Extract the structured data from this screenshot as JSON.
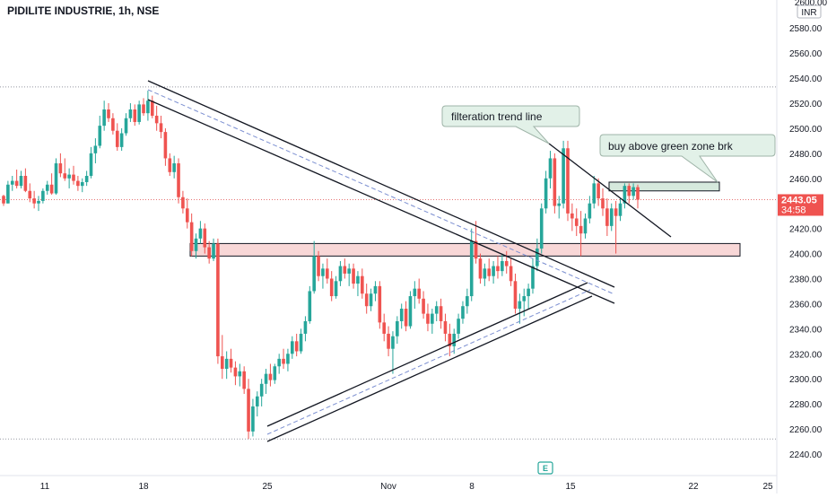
{
  "header": {
    "title": "PIDILITE INDUSTRIE, 1h, NSE"
  },
  "price_axis": {
    "currency": "INR",
    "top_partial_label": "2600.00",
    "last_price": "2443.05",
    "countdown": "34:58"
  },
  "annotations": {
    "callout_trend": "filteration trend line",
    "callout_buy": "buy above green zone brk"
  },
  "events": {
    "earnings_marker": "E"
  },
  "colors": {
    "up": "#26a69a",
    "down": "#ef5350",
    "price_tag": "#ef5350",
    "resistance_zone_fill": "#f8d7d7",
    "breakout_zone_fill": "#d6e9dd",
    "callout_fill": "#e2f1e8",
    "callout_border": "#9fb4a8",
    "channel_mid": "#7b8fd1",
    "dotted_level": "#e57373",
    "grid_text": "#131722"
  },
  "chart_data": {
    "type": "candlestick",
    "title": "PIDILITE INDUSTRIE, 1h, NSE",
    "x_tick_labels": [
      "11",
      "18",
      "25",
      "Nov",
      "8",
      "15",
      "22",
      "25"
    ],
    "y_tick_labels": [
      "2240.00",
      "2260.00",
      "2280.00",
      "2300.00",
      "2320.00",
      "2340.00",
      "2360.00",
      "2380.00",
      "2400.00",
      "2420.00",
      "2440.00",
      "2460.00",
      "2480.00",
      "2500.00",
      "2520.00",
      "2540.00",
      "2560.00",
      "2580.00"
    ],
    "ylim": [
      2232,
      2605
    ],
    "last_price": 2443.05,
    "dotted_levels": [
      2533,
      2443,
      2252
    ],
    "resistance_zone": [
      2398,
      2408
    ],
    "breakout_zone": [
      2450,
      2457
    ],
    "trend_lines": [
      {
        "id": "descending-upper",
        "points": [
          [
            18,
            2535
          ],
          [
            24.5,
            2368
          ]
        ]
      },
      {
        "id": "descending-lower",
        "points": [
          [
            18,
            2523
          ],
          [
            24.5,
            2357
          ]
        ]
      },
      {
        "id": "descending-mid",
        "points": [
          [
            18,
            2529
          ],
          [
            24.5,
            2363
          ]
        ],
        "dashed": true
      },
      {
        "id": "ascending-lower",
        "points": [
          [
            25.1,
            2253
          ],
          [
            24.3,
            2364
          ]
        ]
      },
      {
        "id": "ascending-upper",
        "points": [
          [
            25.1,
            2264
          ],
          [
            24.2,
            2377
          ]
        ]
      },
      {
        "id": "ascending-mid",
        "points": [
          [
            25.1,
            2258
          ],
          [
            24.3,
            2370
          ]
        ],
        "dashed": true
      },
      {
        "id": "filteration-trend-line",
        "points": [
          [
            12.2,
            2486
          ],
          [
            18.6,
            2413
          ]
        ]
      }
    ],
    "candles": [
      [
        2446,
        2447,
        2438,
        2440
      ],
      [
        2440,
        2458,
        2440,
        2455
      ],
      [
        2455,
        2462,
        2450,
        2458
      ],
      [
        2458,
        2467,
        2452,
        2454
      ],
      [
        2454,
        2466,
        2452,
        2462
      ],
      [
        2462,
        2468,
        2449,
        2450
      ],
      [
        2450,
        2456,
        2441,
        2444
      ],
      [
        2444,
        2450,
        2436,
        2440
      ],
      [
        2440,
        2446,
        2434,
        2442
      ],
      [
        2442,
        2452,
        2440,
        2450
      ],
      [
        2450,
        2458,
        2447,
        2455
      ],
      [
        2455,
        2464,
        2447,
        2448
      ],
      [
        2448,
        2476,
        2447,
        2472
      ],
      [
        2472,
        2480,
        2461,
        2464
      ],
      [
        2464,
        2476,
        2458,
        2460
      ],
      [
        2460,
        2468,
        2452,
        2463
      ],
      [
        2463,
        2470,
        2455,
        2458
      ],
      [
        2458,
        2462,
        2450,
        2454
      ],
      [
        2454,
        2460,
        2449,
        2457
      ],
      [
        2457,
        2466,
        2454,
        2462
      ],
      [
        2462,
        2485,
        2460,
        2480
      ],
      [
        2480,
        2492,
        2472,
        2486
      ],
      [
        2486,
        2510,
        2484,
        2502
      ],
      [
        2502,
        2522,
        2498,
        2515
      ],
      [
        2515,
        2520,
        2505,
        2508
      ],
      [
        2508,
        2512,
        2495,
        2498
      ],
      [
        2498,
        2504,
        2482,
        2485
      ],
      [
        2485,
        2500,
        2482,
        2496
      ],
      [
        2496,
        2512,
        2494,
        2508
      ],
      [
        2508,
        2520,
        2505,
        2515
      ],
      [
        2515,
        2519,
        2502,
        2505
      ],
      [
        2505,
        2522,
        2503,
        2519
      ],
      [
        2519,
        2524,
        2510,
        2512
      ],
      [
        2512,
        2530,
        2506,
        2522
      ],
      [
        2522,
        2526,
        2508,
        2510
      ],
      [
        2510,
        2518,
        2498,
        2504
      ],
      [
        2504,
        2510,
        2492,
        2497
      ],
      [
        2497,
        2500,
        2470,
        2476
      ],
      [
        2476,
        2480,
        2462,
        2465
      ],
      [
        2465,
        2478,
        2460,
        2472
      ],
      [
        2472,
        2476,
        2440,
        2445
      ],
      [
        2445,
        2450,
        2432,
        2436
      ],
      [
        2436,
        2444,
        2420,
        2425
      ],
      [
        2425,
        2432,
        2398,
        2402
      ],
      [
        2402,
        2416,
        2396,
        2412
      ],
      [
        2412,
        2426,
        2408,
        2420
      ],
      [
        2420,
        2424,
        2400,
        2405
      ],
      [
        2405,
        2410,
        2392,
        2396
      ],
      [
        2396,
        2412,
        2394,
        2408
      ],
      [
        2408,
        2412,
        2312,
        2318
      ],
      [
        2318,
        2335,
        2300,
        2308
      ],
      [
        2308,
        2322,
        2300,
        2316
      ],
      [
        2316,
        2324,
        2305,
        2309
      ],
      [
        2309,
        2314,
        2295,
        2302
      ],
      [
        2302,
        2312,
        2294,
        2306
      ],
      [
        2306,
        2310,
        2288,
        2292
      ],
      [
        2292,
        2300,
        2252,
        2258
      ],
      [
        2258,
        2284,
        2254,
        2278
      ],
      [
        2278,
        2290,
        2270,
        2286
      ],
      [
        2286,
        2300,
        2278,
        2296
      ],
      [
        2296,
        2308,
        2288,
        2304
      ],
      [
        2304,
        2312,
        2294,
        2299
      ],
      [
        2299,
        2312,
        2296,
        2310
      ],
      [
        2310,
        2320,
        2304,
        2316
      ],
      [
        2316,
        2324,
        2308,
        2312
      ],
      [
        2312,
        2324,
        2306,
        2320
      ],
      [
        2320,
        2334,
        2316,
        2330
      ],
      [
        2330,
        2336,
        2318,
        2322
      ],
      [
        2322,
        2340,
        2320,
        2336
      ],
      [
        2336,
        2350,
        2330,
        2346
      ],
      [
        2346,
        2374,
        2344,
        2370
      ],
      [
        2370,
        2410,
        2368,
        2398
      ],
      [
        2398,
        2402,
        2378,
        2382
      ],
      [
        2382,
        2392,
        2372,
        2388
      ],
      [
        2388,
        2396,
        2376,
        2380
      ],
      [
        2380,
        2386,
        2362,
        2366
      ],
      [
        2366,
        2382,
        2364,
        2378
      ],
      [
        2378,
        2394,
        2374,
        2390
      ],
      [
        2390,
        2396,
        2380,
        2384
      ],
      [
        2384,
        2392,
        2374,
        2388
      ],
      [
        2388,
        2392,
        2372,
        2376
      ],
      [
        2376,
        2386,
        2366,
        2382
      ],
      [
        2382,
        2388,
        2364,
        2368
      ],
      [
        2368,
        2376,
        2352,
        2358
      ],
      [
        2358,
        2372,
        2354,
        2368
      ],
      [
        2368,
        2378,
        2362,
        2374
      ],
      [
        2374,
        2378,
        2340,
        2345
      ],
      [
        2345,
        2352,
        2330,
        2336
      ],
      [
        2336,
        2342,
        2318,
        2324
      ],
      [
        2324,
        2338,
        2304,
        2334
      ],
      [
        2334,
        2350,
        2328,
        2346
      ],
      [
        2346,
        2360,
        2340,
        2356
      ],
      [
        2356,
        2362,
        2338,
        2342
      ],
      [
        2342,
        2370,
        2340,
        2366
      ],
      [
        2366,
        2378,
        2356,
        2372
      ],
      [
        2372,
        2380,
        2360,
        2364
      ],
      [
        2364,
        2370,
        2348,
        2352
      ],
      [
        2352,
        2360,
        2338,
        2344
      ],
      [
        2344,
        2356,
        2336,
        2352
      ],
      [
        2352,
        2362,
        2346,
        2358
      ],
      [
        2358,
        2364,
        2340,
        2346
      ],
      [
        2346,
        2352,
        2330,
        2336
      ],
      [
        2336,
        2344,
        2318,
        2326
      ],
      [
        2326,
        2340,
        2320,
        2336
      ],
      [
        2336,
        2352,
        2332,
        2348
      ],
      [
        2348,
        2362,
        2344,
        2358
      ],
      [
        2358,
        2372,
        2352,
        2366
      ],
      [
        2366,
        2420,
        2362,
        2410
      ],
      [
        2410,
        2426,
        2392,
        2396
      ],
      [
        2396,
        2400,
        2376,
        2380
      ],
      [
        2380,
        2392,
        2374,
        2388
      ],
      [
        2388,
        2396,
        2378,
        2382
      ],
      [
        2382,
        2394,
        2376,
        2390
      ],
      [
        2390,
        2398,
        2380,
        2386
      ],
      [
        2386,
        2400,
        2382,
        2394
      ],
      [
        2394,
        2402,
        2384,
        2390
      ],
      [
        2390,
        2396,
        2374,
        2378
      ],
      [
        2378,
        2384,
        2352,
        2356
      ],
      [
        2356,
        2368,
        2344,
        2362
      ],
      [
        2362,
        2372,
        2350,
        2366
      ],
      [
        2366,
        2376,
        2356,
        2372
      ],
      [
        2372,
        2396,
        2368,
        2390
      ],
      [
        2390,
        2412,
        2386,
        2404
      ],
      [
        2404,
        2440,
        2400,
        2436
      ],
      [
        2436,
        2466,
        2432,
        2460
      ],
      [
        2460,
        2482,
        2452,
        2476
      ],
      [
        2476,
        2480,
        2432,
        2438
      ],
      [
        2438,
        2446,
        2428,
        2440
      ],
      [
        2440,
        2490,
        2436,
        2484
      ],
      [
        2484,
        2490,
        2426,
        2432
      ],
      [
        2432,
        2440,
        2418,
        2428
      ],
      [
        2428,
        2436,
        2414,
        2422
      ],
      [
        2422,
        2434,
        2398,
        2416
      ],
      [
        2416,
        2432,
        2412,
        2428
      ],
      [
        2428,
        2446,
        2424,
        2440
      ],
      [
        2440,
        2462,
        2436,
        2456
      ],
      [
        2456,
        2460,
        2438,
        2444
      ],
      [
        2444,
        2452,
        2430,
        2436
      ],
      [
        2436,
        2444,
        2414,
        2422
      ],
      [
        2422,
        2440,
        2418,
        2436
      ],
      [
        2436,
        2442,
        2400,
        2430
      ],
      [
        2430,
        2444,
        2426,
        2440
      ],
      [
        2440,
        2456,
        2436,
        2454
      ],
      [
        2454,
        2456,
        2440,
        2446
      ],
      [
        2446,
        2456,
        2443,
        2453
      ],
      [
        2453,
        2455,
        2436,
        2443
      ]
    ]
  }
}
